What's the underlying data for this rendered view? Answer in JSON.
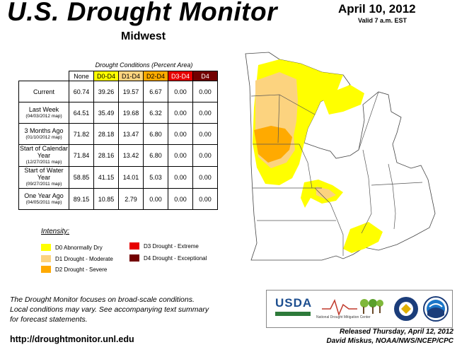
{
  "header": {
    "title": "U.S. Drought Monitor",
    "region": "Midwest",
    "date": "April 10, 2012",
    "valid": "Valid 7 a.m. EST"
  },
  "table": {
    "caption": "Drought Conditions (Percent Area)",
    "columns": [
      "None",
      "D0-D4",
      "D1-D4",
      "D2-D4",
      "D3-D4",
      "D4"
    ],
    "column_colors": [
      "#ffffff",
      "#ffff00",
      "#fcd37f",
      "#ffaa00",
      "#e60000",
      "#730000"
    ],
    "column_text_colors": [
      "#000000",
      "#000000",
      "#000000",
      "#000000",
      "#ffffff",
      "#ffffff"
    ],
    "rows": [
      {
        "label": "Current",
        "sub": "",
        "values": [
          "60.74",
          "39.26",
          "19.57",
          "6.67",
          "0.00",
          "0.00"
        ]
      },
      {
        "label": "Last Week",
        "sub": "(04/03/2012 map)",
        "values": [
          "64.51",
          "35.49",
          "19.68",
          "6.32",
          "0.00",
          "0.00"
        ]
      },
      {
        "label": "3 Months Ago",
        "sub": "(01/10/2012 map)",
        "values": [
          "71.82",
          "28.18",
          "13.47",
          "6.80",
          "0.00",
          "0.00"
        ]
      },
      {
        "label": "Start of Calendar Year",
        "sub": "(12/27/2011 map)",
        "values": [
          "71.84",
          "28.16",
          "13.42",
          "6.80",
          "0.00",
          "0.00"
        ]
      },
      {
        "label": "Start of Water Year",
        "sub": "(09/27/2011 map)",
        "values": [
          "58.85",
          "41.15",
          "14.01",
          "5.03",
          "0.00",
          "0.00"
        ]
      },
      {
        "label": "One Year Ago",
        "sub": "(04/05/2011 map)",
        "values": [
          "89.15",
          "10.85",
          "2.79",
          "0.00",
          "0.00",
          "0.00"
        ]
      }
    ]
  },
  "legend": {
    "title": "Intensity:",
    "items": [
      {
        "label": "D0 Abnormally Dry",
        "color": "#ffff00"
      },
      {
        "label": "D1 Drought - Moderate",
        "color": "#fcd37f"
      },
      {
        "label": "D2 Drought - Severe",
        "color": "#ffaa00"
      },
      {
        "label": "D3 Drought - Extreme",
        "color": "#e60000"
      },
      {
        "label": "D4 Drought - Exceptional",
        "color": "#730000"
      }
    ]
  },
  "footnote": [
    "The Drought Monitor focuses on broad-scale conditions.",
    "Local conditions may vary. See accompanying text summary",
    "for forecast statements."
  ],
  "url": "http://droughtmonitor.unl.edu",
  "logos": {
    "usda": "USDA",
    "ndmc": "National Drought Mitigation Center"
  },
  "released": "Released Thursday, April 12, 2012",
  "author": "David Miskus, NOAA/NWS/NCEP/CPC"
}
